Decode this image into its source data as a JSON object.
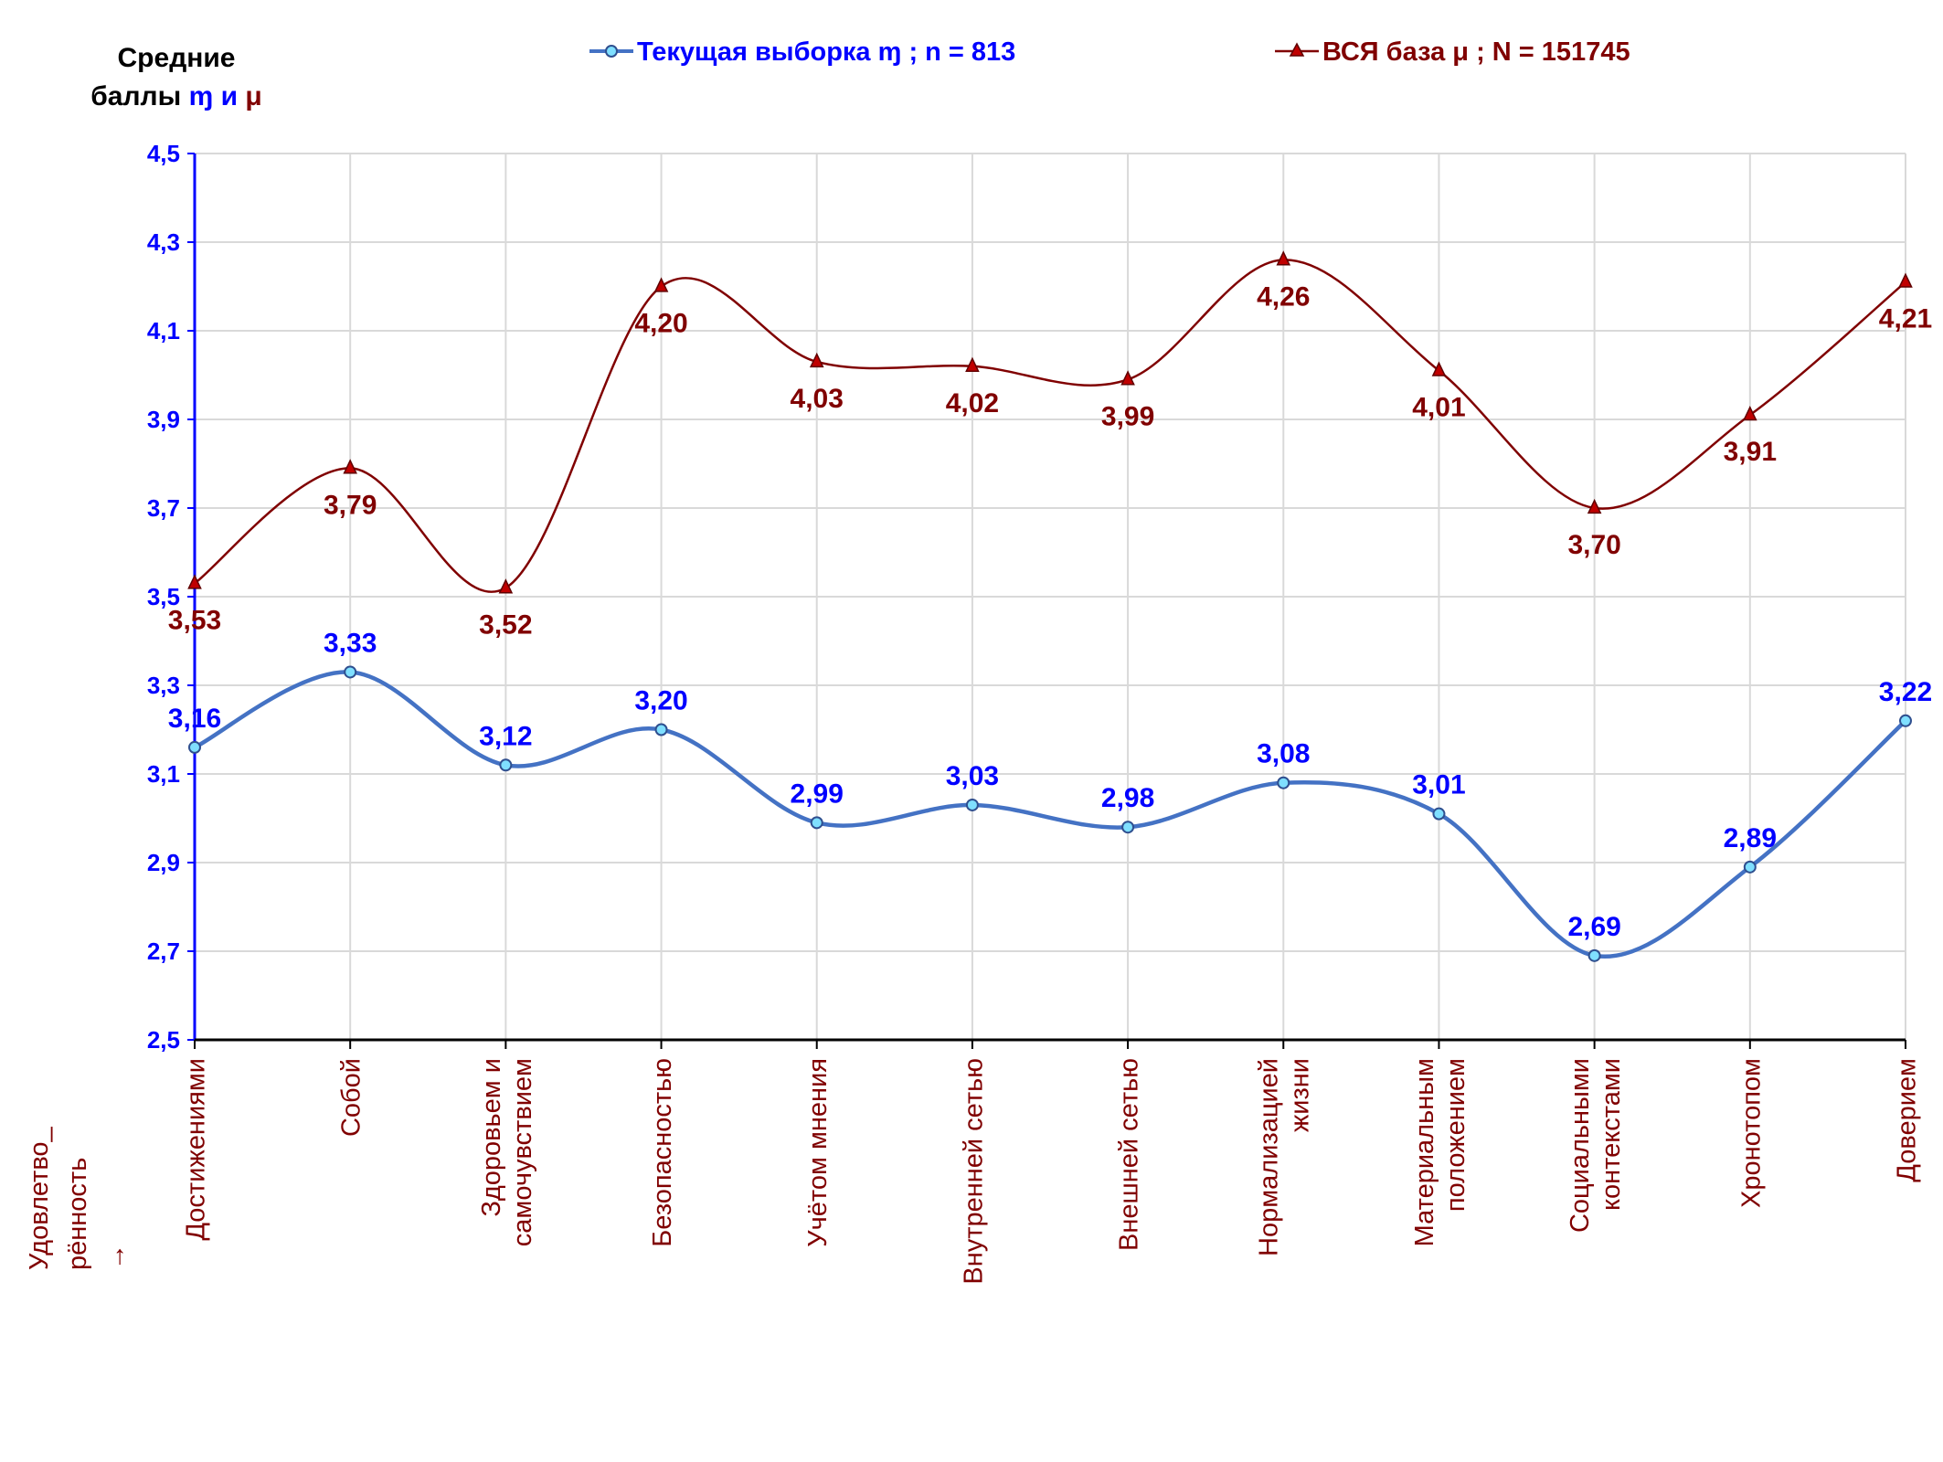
{
  "chart_data": {
    "type": "line",
    "y_title_lines": [
      "Средние",
      "баллы"
    ],
    "y_title_symbols": {
      "m": "ɱ",
      "and": "и",
      "mu": "μ"
    },
    "x_axis_title_lines": [
      "Удовлетво_",
      "рённость",
      "→"
    ],
    "ylim": [
      2.5,
      4.5
    ],
    "y_ticks": [
      "2,5",
      "2,7",
      "2,9",
      "3,1",
      "3,3",
      "3,5",
      "3,7",
      "3,9",
      "4,1",
      "4,3",
      "4,5"
    ],
    "grid": true,
    "legend_position": "top",
    "categories": [
      [
        "Достижениями"
      ],
      [
        "Собой"
      ],
      [
        "Здоровьем и",
        "самочувствием"
      ],
      [
        "Безопасностью"
      ],
      [
        "Учётом мнения"
      ],
      [
        "Внутренней сетью"
      ],
      [
        "Внешней сетью"
      ],
      [
        "Нормализацией",
        "жизни"
      ],
      [
        "Материальным",
        "положением"
      ],
      [
        "Социальными",
        "контекстами"
      ],
      [
        "Хронотопом"
      ],
      [
        "Доверием"
      ]
    ],
    "series": [
      {
        "name": "Текущая выборка ɱ ; n = 813",
        "color": "#4472C4",
        "marker": "circle",
        "label_color": "#0000FF",
        "label_position": "above",
        "values": [
          3.16,
          3.33,
          3.12,
          3.2,
          2.99,
          3.03,
          2.98,
          3.08,
          3.01,
          2.69,
          2.89,
          3.22
        ],
        "labels": [
          "3,16",
          "3,33",
          "3,12",
          "3,20",
          "2,99",
          "3,03",
          "2,98",
          "3,08",
          "3,01",
          "2,69",
          "2,89",
          "3,22"
        ]
      },
      {
        "name": "ВСЯ база μ ; N = 151745",
        "color": "#800000",
        "marker": "triangle",
        "label_color": "#800000",
        "label_position": "below",
        "values": [
          3.53,
          3.79,
          3.52,
          4.2,
          4.03,
          4.02,
          3.99,
          4.26,
          4.01,
          3.7,
          3.91,
          4.21
        ],
        "labels": [
          "3,53",
          "3,79",
          "3,52",
          "4,20",
          "4,03",
          "4,02",
          "3,99",
          "4,26",
          "4,01",
          "3,70",
          "3,91",
          "4,21"
        ]
      }
    ]
  }
}
